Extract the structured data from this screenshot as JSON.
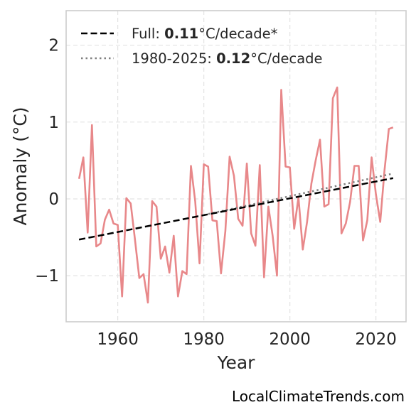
{
  "chart_data": {
    "type": "line",
    "xlabel": "Year",
    "ylabel": "Anomaly (°C)",
    "xlim": [
      1948,
      2027
    ],
    "ylim": [
      -1.6,
      2.45
    ],
    "xticks": [
      1960,
      1980,
      2000,
      2020
    ],
    "yticks": [
      -1,
      0,
      1,
      2
    ],
    "ytick_labels": [
      "−1",
      "0",
      "1",
      "2"
    ],
    "grid": true,
    "legend_position": "upper-left",
    "colors": {
      "series": "#e8888a",
      "full_trend": "#000000",
      "recent_trend": "#808080"
    },
    "series": [
      {
        "x": [
          1951,
          1952,
          1953,
          1954,
          1955,
          1956,
          1957,
          1958,
          1959,
          1960,
          1961,
          1962,
          1963,
          1964,
          1965,
          1966,
          1967,
          1968,
          1969,
          1970,
          1971,
          1972,
          1973,
          1974,
          1975,
          1976,
          1977,
          1978,
          1979,
          1980,
          1981,
          1982,
          1983,
          1984,
          1985,
          1986,
          1987,
          1988,
          1989,
          1990,
          1991,
          1992,
          1993,
          1994,
          1995,
          1996,
          1997,
          1998,
          1999,
          2000,
          2001,
          2002,
          2003,
          2004,
          2005,
          2006,
          2007,
          2008,
          2009,
          2010,
          2011,
          2012,
          2013,
          2014,
          2015,
          2016,
          2017,
          2018,
          2019,
          2020,
          2021,
          2022,
          2023,
          2024
        ],
        "values": [
          0.26,
          0.54,
          -0.44,
          0.96,
          -0.62,
          -0.58,
          -0.27,
          -0.14,
          -0.32,
          -0.34,
          -1.27,
          0.01,
          -0.06,
          -0.53,
          -1.03,
          -0.98,
          -1.35,
          -0.03,
          -0.1,
          -0.78,
          -0.62,
          -0.96,
          -0.48,
          -1.27,
          -0.94,
          -0.98,
          0.43,
          -0.03,
          -0.84,
          0.45,
          0.42,
          -0.28,
          -0.29,
          -0.97,
          -0.42,
          0.55,
          0.3,
          -0.26,
          -0.35,
          0.46,
          -0.45,
          -0.61,
          0.44,
          -1.02,
          -0.1,
          -0.48,
          -1.0,
          1.42,
          0.42,
          0.41,
          -0.39,
          0.02,
          -0.66,
          -0.3,
          0.2,
          0.5,
          0.77,
          -0.1,
          -0.07,
          1.31,
          1.45,
          -0.45,
          -0.32,
          -0.04,
          0.43,
          0.43,
          -0.54,
          -0.28,
          0.54,
          0.06,
          -0.3,
          0.37,
          0.91,
          0.93
        ]
      }
    ],
    "trends": [
      {
        "x": [
          1951,
          2024
        ],
        "values": [
          -0.53,
          0.27
        ]
      },
      {
        "x": [
          1980,
          2024
        ],
        "values": [
          -0.21,
          0.33
        ]
      }
    ],
    "legend": [
      {
        "prefix": "Full: ",
        "value": "0.11",
        "suffix": "°C/decade*"
      },
      {
        "prefix": "1980-2025: ",
        "value": "0.12",
        "suffix": "°C/decade"
      }
    ]
  },
  "watermark": "LocalClimateTrends.com"
}
